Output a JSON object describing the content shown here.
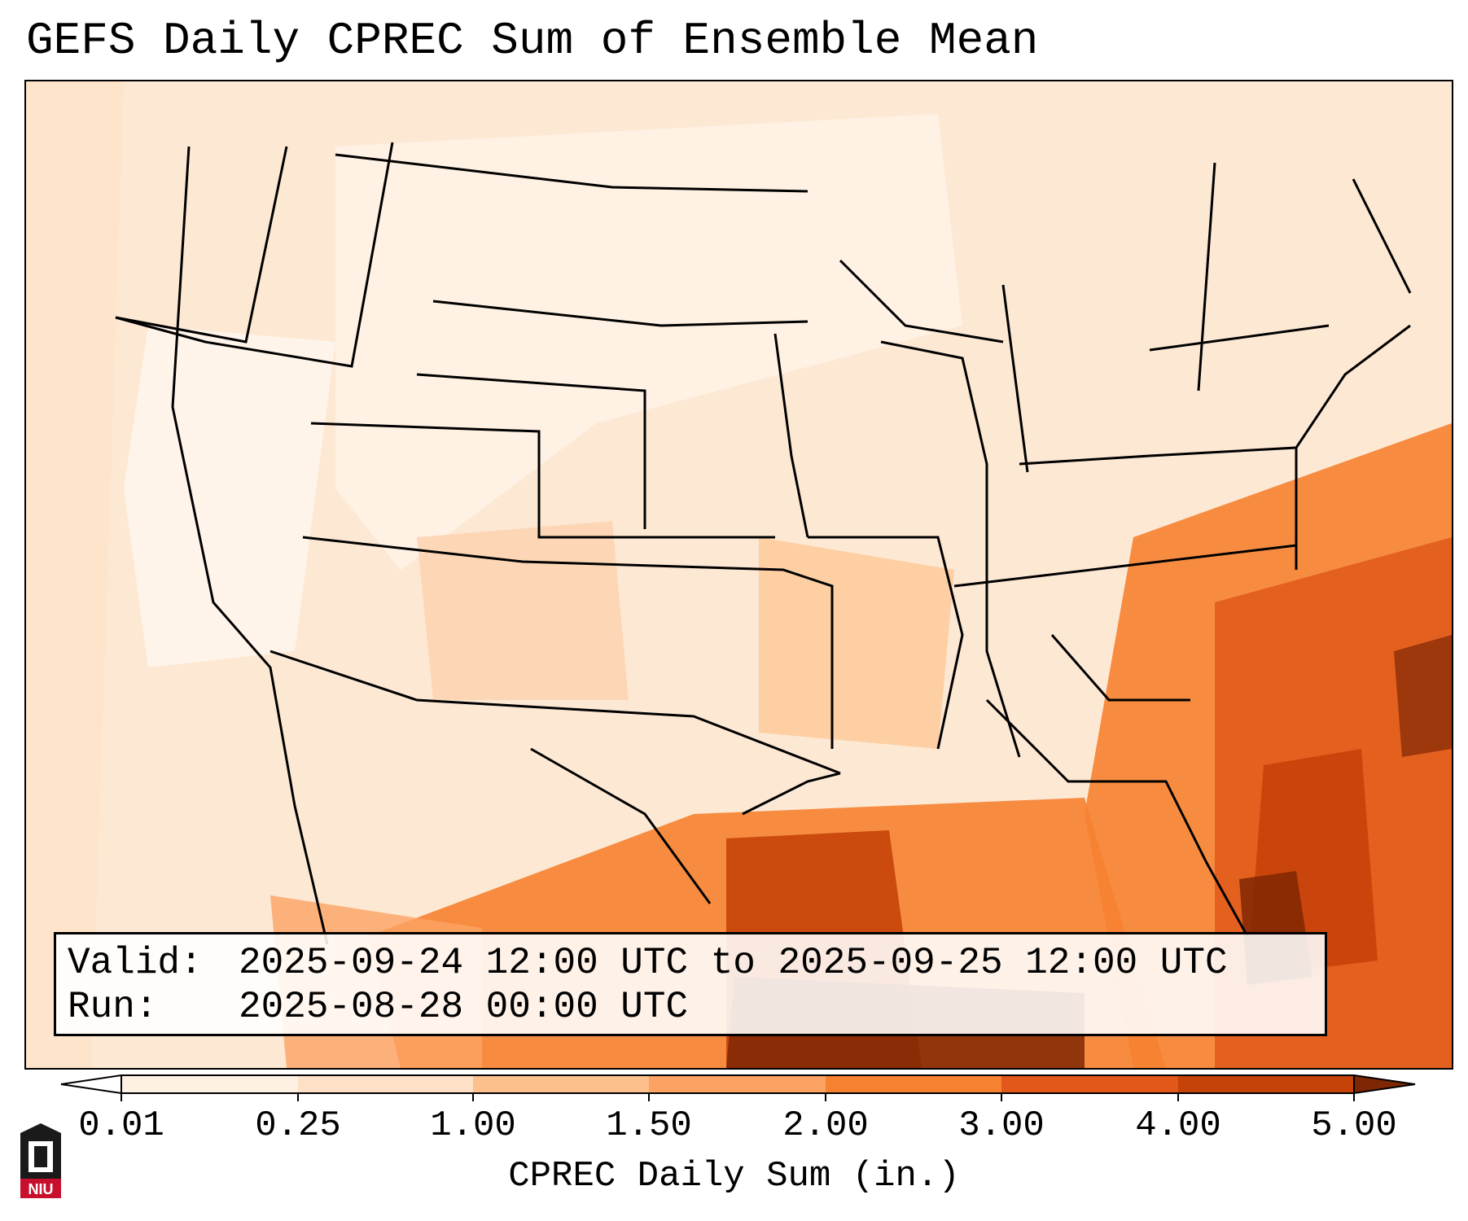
{
  "title": "GEFS Daily CPREC Sum of Ensemble Mean",
  "info": {
    "valid_label": "Valid:",
    "valid_value": "2025-09-24 12:00 UTC to 2025-09-25 12:00 UTC",
    "run_label": "Run:",
    "run_value": "2025-08-28 00:00 UTC"
  },
  "colorbar": {
    "label": "CPREC Daily Sum (in.)",
    "ticks": [
      "0.01",
      "0.25",
      "1.00",
      "1.50",
      "2.00",
      "3.00",
      "4.00",
      "5.00"
    ],
    "colors": [
      "#fef0e2",
      "#fde0c5",
      "#fdc08c",
      "#fca263",
      "#f68231",
      "#e1581a",
      "#c54309",
      "#7f2704"
    ],
    "under_color": "#ffffff",
    "over_color": "#7f2704",
    "extend": "both"
  },
  "logo": {
    "text": "NIU"
  }
}
